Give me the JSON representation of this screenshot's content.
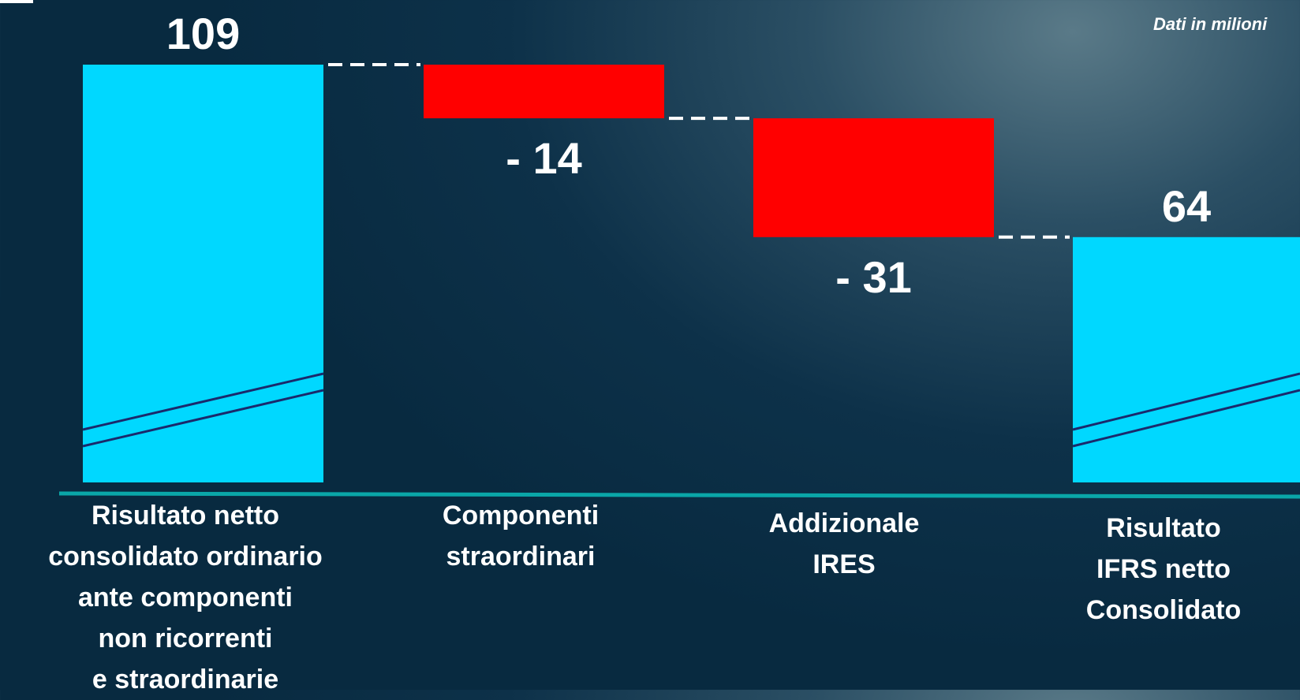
{
  "unit_note": "Dati  in milioni",
  "chart_data": {
    "type": "waterfall",
    "title": "",
    "ylim": [
      0,
      109
    ],
    "categories": [
      "Risultato netto\nconsolidato ordinario\nante componenti\nnon ricorrenti\ne straordinarie",
      "Componenti\nstraordinari",
      "Addizionale\nIRES",
      "Risultato\nIFRS netto\nConsolidato"
    ],
    "steps": [
      {
        "kind": "total",
        "value": 109,
        "label": "109"
      },
      {
        "kind": "delta",
        "value": -14,
        "label": "- 14"
      },
      {
        "kind": "delta",
        "value": -31,
        "label": "- 31"
      },
      {
        "kind": "total",
        "value": 64,
        "label": "64"
      }
    ],
    "axis_break": true,
    "colors": {
      "total": "#00d8ff",
      "delta": "#ff0000",
      "axis": "#0aa6a8",
      "connector": "#ffffff",
      "break_line": "#1a2a6c"
    }
  }
}
